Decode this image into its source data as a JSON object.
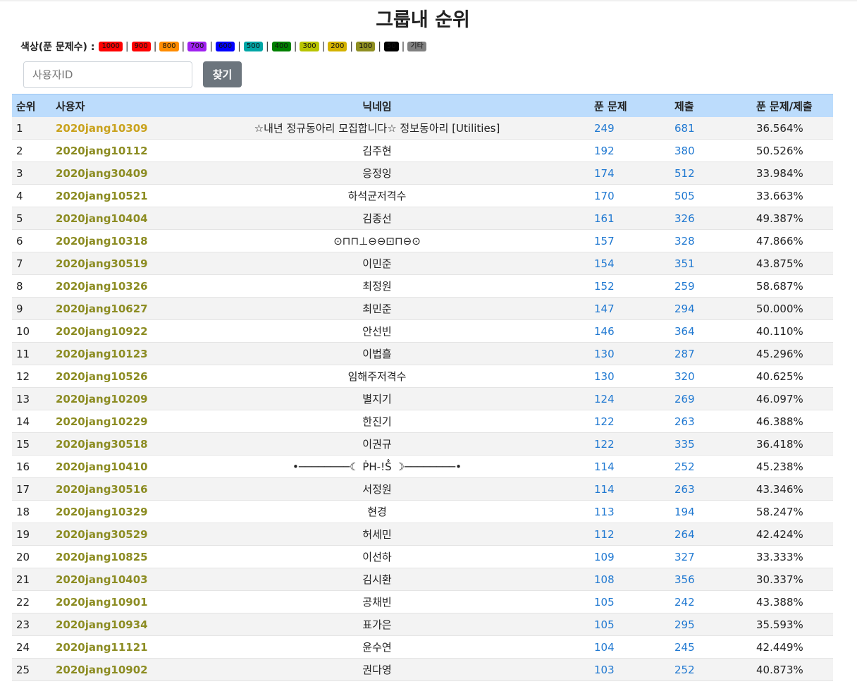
{
  "page": {
    "title": "그룹내 순위"
  },
  "legend": {
    "label": "색상(푼 문제수) :",
    "items": [
      {
        "text": "1000",
        "color": "#ff0000"
      },
      {
        "text": "900",
        "color": "#ff0000"
      },
      {
        "text": "800",
        "color": "#ff8c00"
      },
      {
        "text": "700",
        "color": "#a020f0"
      },
      {
        "text": "600",
        "color": "#0000ff"
      },
      {
        "text": "500",
        "color": "#00a6a6"
      },
      {
        "text": "400",
        "color": "#008000"
      },
      {
        "text": "300",
        "color": "#b8c400"
      },
      {
        "text": "200",
        "color": "#d4b200"
      },
      {
        "text": "100",
        "color": "#8f8f22"
      },
      {
        "text": "50",
        "color": "#000000"
      },
      {
        "text": "기타",
        "color": "#808080"
      }
    ]
  },
  "search": {
    "placeholder": "사용자ID",
    "button_label": "찾기"
  },
  "table": {
    "headers": {
      "rank": "순위",
      "user": "사용자",
      "nickname": "닉네임",
      "solved": "푼 문제",
      "submissions": "제출",
      "ratio": "푼 문제/제출"
    },
    "rows": [
      {
        "rank": "1",
        "user": "2020jang10309",
        "nickname": "☆내년 정규동아리 모집합니다☆ 정보동아리 [Utilities]",
        "solved": "249",
        "submissions": "681",
        "ratio": "36.564%"
      },
      {
        "rank": "2",
        "user": "2020jang10112",
        "nickname": "김주현",
        "solved": "192",
        "submissions": "380",
        "ratio": "50.526%"
      },
      {
        "rank": "3",
        "user": "2020jang30409",
        "nickname": "응정잉",
        "solved": "174",
        "submissions": "512",
        "ratio": "33.984%"
      },
      {
        "rank": "4",
        "user": "2020jang10521",
        "nickname": "하석균저격수",
        "solved": "170",
        "submissions": "505",
        "ratio": "33.663%"
      },
      {
        "rank": "5",
        "user": "2020jang10404",
        "nickname": "김종선",
        "solved": "161",
        "submissions": "326",
        "ratio": "49.387%"
      },
      {
        "rank": "6",
        "user": "2020jang10318",
        "nickname": "⊙⊓⊓⊥⊖⊖⊡⊓⊖⊙",
        "solved": "157",
        "submissions": "328",
        "ratio": "47.866%"
      },
      {
        "rank": "7",
        "user": "2020jang30519",
        "nickname": "이민준",
        "solved": "154",
        "submissions": "351",
        "ratio": "43.875%"
      },
      {
        "rank": "8",
        "user": "2020jang10326",
        "nickname": "최정원",
        "solved": "152",
        "submissions": "259",
        "ratio": "58.687%"
      },
      {
        "rank": "9",
        "user": "2020jang10627",
        "nickname": "최민준",
        "solved": "147",
        "submissions": "294",
        "ratio": "50.000%"
      },
      {
        "rank": "10",
        "user": "2020jang10922",
        "nickname": "안선빈",
        "solved": "146",
        "submissions": "364",
        "ratio": "40.110%"
      },
      {
        "rank": "11",
        "user": "2020jang10123",
        "nickname": "이법흘",
        "solved": "130",
        "submissions": "287",
        "ratio": "45.296%"
      },
      {
        "rank": "12",
        "user": "2020jang10526",
        "nickname": "임해주저격수",
        "solved": "130",
        "submissions": "320",
        "ratio": "40.625%"
      },
      {
        "rank": "13",
        "user": "2020jang10209",
        "nickname": "별지기",
        "solved": "124",
        "submissions": "269",
        "ratio": "46.097%"
      },
      {
        "rank": "14",
        "user": "2020jang10229",
        "nickname": "한진기",
        "solved": "122",
        "submissions": "263",
        "ratio": "46.388%"
      },
      {
        "rank": "15",
        "user": "2020jang30518",
        "nickname": "이권규",
        "solved": "122",
        "submissions": "335",
        "ratio": "36.418%"
      },
      {
        "rank": "16",
        "user": "2020jang10410",
        "nickname": "•────────☾ ṖH-!Ṧ ☽────────•",
        "solved": "114",
        "submissions": "252",
        "ratio": "45.238%"
      },
      {
        "rank": "17",
        "user": "2020jang30516",
        "nickname": "서정원",
        "solved": "114",
        "submissions": "263",
        "ratio": "43.346%"
      },
      {
        "rank": "18",
        "user": "2020jang10329",
        "nickname": "현경",
        "solved": "113",
        "submissions": "194",
        "ratio": "58.247%"
      },
      {
        "rank": "19",
        "user": "2020jang30529",
        "nickname": "허세민",
        "solved": "112",
        "submissions": "264",
        "ratio": "42.424%"
      },
      {
        "rank": "20",
        "user": "2020jang10825",
        "nickname": "이선하",
        "solved": "109",
        "submissions": "327",
        "ratio": "33.333%"
      },
      {
        "rank": "21",
        "user": "2020jang10403",
        "nickname": "김시환",
        "solved": "108",
        "submissions": "356",
        "ratio": "30.337%"
      },
      {
        "rank": "22",
        "user": "2020jang10901",
        "nickname": "공채빈",
        "solved": "105",
        "submissions": "242",
        "ratio": "43.388%"
      },
      {
        "rank": "23",
        "user": "2020jang10934",
        "nickname": "표가은",
        "solved": "105",
        "submissions": "295",
        "ratio": "35.593%"
      },
      {
        "rank": "24",
        "user": "2020jang11121",
        "nickname": "윤수연",
        "solved": "104",
        "submissions": "245",
        "ratio": "42.449%"
      },
      {
        "rank": "25",
        "user": "2020jang10902",
        "nickname": "권다영",
        "solved": "103",
        "submissions": "252",
        "ratio": "40.873%"
      }
    ]
  }
}
